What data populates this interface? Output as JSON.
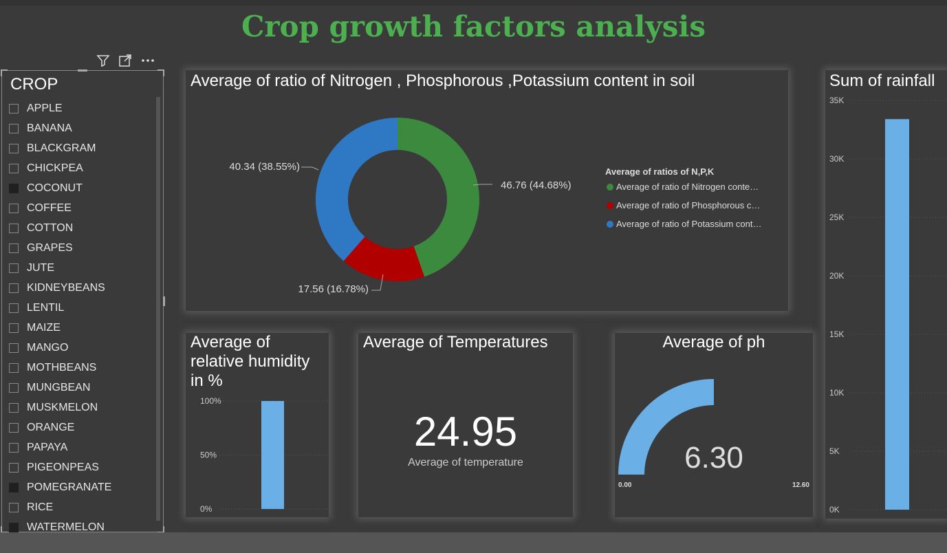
{
  "header": {
    "title": "Crop growth factors analysis"
  },
  "slicer": {
    "title": "CROP",
    "items": [
      {
        "label": "APPLE",
        "selected": false
      },
      {
        "label": "BANANA",
        "selected": false
      },
      {
        "label": "BLACKGRAM",
        "selected": false
      },
      {
        "label": "CHICKPEA",
        "selected": false
      },
      {
        "label": "COCONUT",
        "selected": true
      },
      {
        "label": "COFFEE",
        "selected": false
      },
      {
        "label": "COTTON",
        "selected": false
      },
      {
        "label": "GRAPES",
        "selected": false
      },
      {
        "label": "JUTE",
        "selected": false
      },
      {
        "label": "KIDNEYBEANS",
        "selected": false
      },
      {
        "label": "LENTIL",
        "selected": false
      },
      {
        "label": "MAIZE",
        "selected": false
      },
      {
        "label": "MANGO",
        "selected": false
      },
      {
        "label": "MOTHBEANS",
        "selected": false
      },
      {
        "label": "MUNGBEAN",
        "selected": false
      },
      {
        "label": "MUSKMELON",
        "selected": false
      },
      {
        "label": "ORANGE",
        "selected": false
      },
      {
        "label": "PAPAYA",
        "selected": false
      },
      {
        "label": "PIGEONPEAS",
        "selected": false
      },
      {
        "label": "POMEGRANATE",
        "selected": true
      },
      {
        "label": "RICE",
        "selected": false
      },
      {
        "label": "WATERMELON",
        "selected": true
      }
    ],
    "icons": [
      "filter-icon",
      "focus-mode-icon",
      "more-options-icon"
    ]
  },
  "chart_data": [
    {
      "type": "pie",
      "title": "Average of ratio of Nitrogen , Phosphorous ,Potassium content in soil",
      "legend_title": "Average of ratios of N,P,K",
      "legend_placement": "right",
      "categories": [
        "Average of ratio of Nitrogen conte…",
        "Average of ratio of Phosphorous c…",
        "Average of ratio of Potassium cont…"
      ],
      "values": [
        46.76,
        17.56,
        40.34
      ],
      "labels": [
        "46.76 (44.68%)",
        "17.56 (16.78%)",
        "40.34 (38.55%)"
      ],
      "colors": [
        "#3b8a3e",
        "#b00000",
        "#2f78c4"
      ]
    },
    {
      "type": "bar",
      "title": "Sum of rainfall",
      "values": [
        33400
      ],
      "ylim": [
        0,
        35000
      ],
      "yticks": [
        "0K",
        "5K",
        "10K",
        "15K",
        "20K",
        "25K",
        "30K",
        "35K"
      ],
      "color": "#6aafe6"
    },
    {
      "type": "bar",
      "title": "Average of relative humidity in %",
      "values": [
        100
      ],
      "ylim": [
        0,
        100
      ],
      "yticks": [
        "0%",
        "50%",
        "100%"
      ],
      "color": "#6aafe6"
    }
  ],
  "temperature_card": {
    "title": "Average of Temperatures",
    "value": "24.95",
    "label": "Average of temperature"
  },
  "ph_gauge": {
    "title": "Average of ph",
    "value": 6.3,
    "value_label": "6.30",
    "min_label": "0.00",
    "max_label": "12.60",
    "min": 0,
    "max": 12.6,
    "color": "#6aafe6"
  }
}
